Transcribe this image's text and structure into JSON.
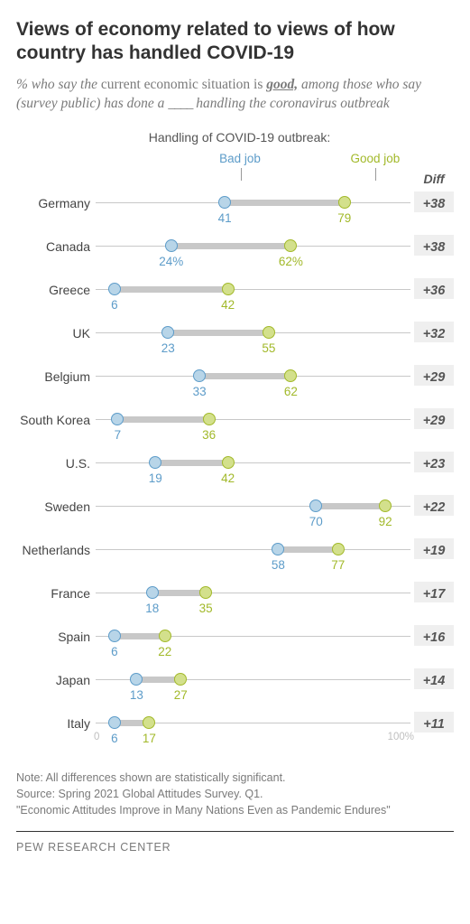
{
  "title": "Views of economy related to views of how country has handled COVID-19",
  "subtitle_pre": "% who say the ",
  "subtitle_mid1": "current economic situation is ",
  "subtitle_emph": "good,",
  "subtitle_post": " among those who say (survey public) has done a ",
  "subtitle_blank": "____",
  "subtitle_end": " handling the coronavirus outbreak",
  "chart": {
    "header": "Handling of COVID-19 outbreak:",
    "legend_bad": "Bad job",
    "legend_good": "Good job",
    "diff_header": "Diff",
    "bad_color": "#5d9cc9",
    "bad_fill": "#b8d5e8",
    "good_color": "#a2b92a",
    "good_fill": "#d3e08c",
    "bar_color": "#c8c8c8",
    "axis_color": "#c8c8c8",
    "diff_bg": "#efefef",
    "xlim": [
      0,
      100
    ],
    "scale_0": "0",
    "scale_100": "100%",
    "rows": [
      {
        "country": "Germany",
        "bad": 41,
        "good": 79,
        "diff": "+38",
        "bad_label": "41",
        "good_label": "79",
        "pct": false
      },
      {
        "country": "Canada",
        "bad": 24,
        "good": 62,
        "diff": "+38",
        "bad_label": "24%",
        "good_label": "62%",
        "pct": true
      },
      {
        "country": "Greece",
        "bad": 6,
        "good": 42,
        "diff": "+36",
        "bad_label": "6",
        "good_label": "42",
        "pct": false
      },
      {
        "country": "UK",
        "bad": 23,
        "good": 55,
        "diff": "+32",
        "bad_label": "23",
        "good_label": "55",
        "pct": false
      },
      {
        "country": "Belgium",
        "bad": 33,
        "good": 62,
        "diff": "+29",
        "bad_label": "33",
        "good_label": "62",
        "pct": false
      },
      {
        "country": "South Korea",
        "bad": 7,
        "good": 36,
        "diff": "+29",
        "bad_label": "7",
        "good_label": "36",
        "pct": false
      },
      {
        "country": "U.S.",
        "bad": 19,
        "good": 42,
        "diff": "+23",
        "bad_label": "19",
        "good_label": "42",
        "pct": false
      },
      {
        "country": "Sweden",
        "bad": 70,
        "good": 92,
        "diff": "+22",
        "bad_label": "70",
        "good_label": "92",
        "pct": false
      },
      {
        "country": "Netherlands",
        "bad": 58,
        "good": 77,
        "diff": "+19",
        "bad_label": "58",
        "good_label": "77",
        "pct": false
      },
      {
        "country": "France",
        "bad": 18,
        "good": 35,
        "diff": "+17",
        "bad_label": "18",
        "good_label": "35",
        "pct": false
      },
      {
        "country": "Spain",
        "bad": 6,
        "good": 22,
        "diff": "+16",
        "bad_label": "6",
        "good_label": "22",
        "pct": false
      },
      {
        "country": "Japan",
        "bad": 13,
        "good": 27,
        "diff": "+14",
        "bad_label": "13",
        "good_label": "27",
        "pct": false
      },
      {
        "country": "Italy",
        "bad": 6,
        "good": 17,
        "diff": "+11",
        "bad_label": "6",
        "good_label": "17",
        "pct": false
      }
    ]
  },
  "note_line1": "Note: All differences shown are statistically significant.",
  "note_line2": "Source: Spring 2021 Global Attitudes Survey. Q1.",
  "note_line3": "\"Economic Attitudes Improve in Many Nations Even as Pandemic Endures\"",
  "footer": "PEW RESEARCH CENTER"
}
